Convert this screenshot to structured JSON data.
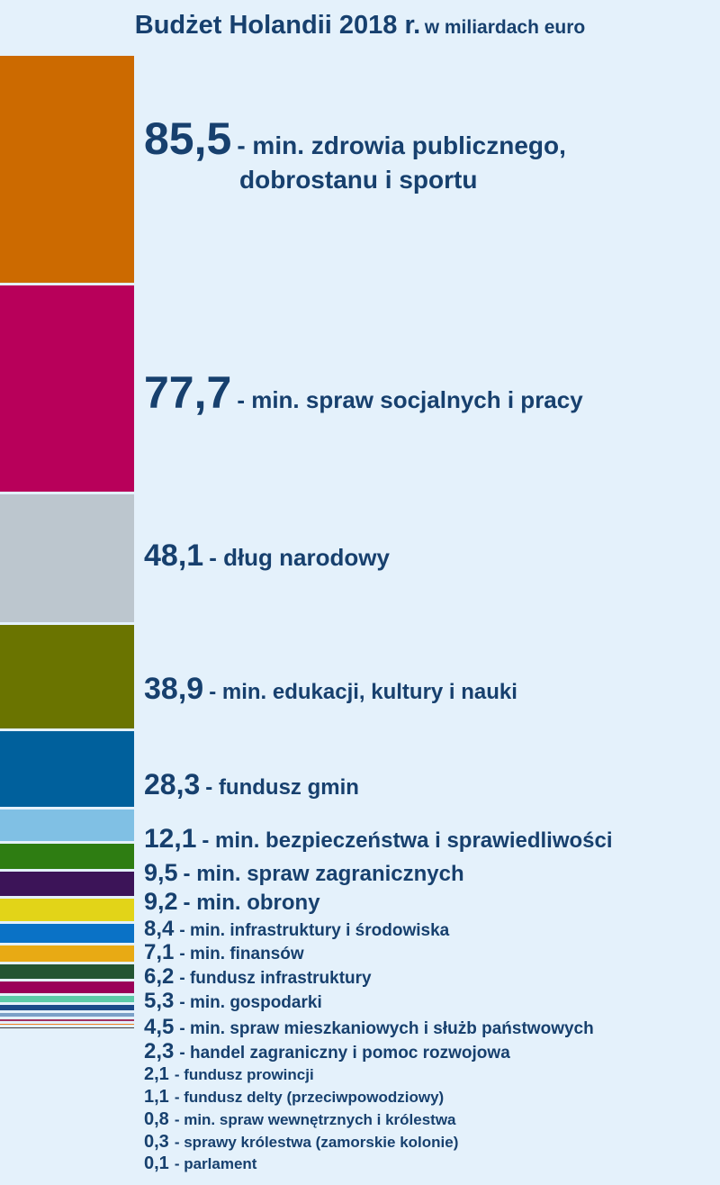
{
  "title": "Budżet Holandii 2018 r.",
  "subtitle": "w miliardach euro",
  "chart_data": {
    "type": "bar",
    "orientation": "stacked-vertical",
    "title": "Budżet Holandii 2018 r. w miliardach euro",
    "unit": "mld euro",
    "items": [
      {
        "value": 85.5,
        "value_label": "85,5",
        "label": "- min. zdrowia publicznego,",
        "label2": "dobrostanu i sportu",
        "color": "#cc6a00"
      },
      {
        "value": 77.7,
        "value_label": "77,7",
        "label": "- min. spraw socjalnych i pracy",
        "color": "#b8005a"
      },
      {
        "value": 48.1,
        "value_label": "48,1",
        "label": "- dług narodowy",
        "color": "#bcc6ce"
      },
      {
        "value": 38.9,
        "value_label": "38,9",
        "label": "- min. edukacji, kultury i nauki",
        "color": "#6a7400"
      },
      {
        "value": 28.3,
        "value_label": "28,3",
        "label": "- fundusz gmin",
        "color": "#00609c"
      },
      {
        "value": 12.1,
        "value_label": "12,1",
        "label": "- min. bezpieczeństwa i sprawiedliwości",
        "color": "#80c0e4"
      },
      {
        "value": 9.5,
        "value_label": "9,5",
        "label": "- min. spraw zagranicznych",
        "color": "#2e7d12"
      },
      {
        "value": 9.2,
        "value_label": "9,2",
        "label": "- min. obrony",
        "color": "#3c1458"
      },
      {
        "value": 8.4,
        "value_label": "8,4",
        "label": "- min. infrastruktury i środowiska",
        "color": "#e2d418"
      },
      {
        "value": 7.1,
        "value_label": "7,1",
        "label": "- min. finansów",
        "color": "#0a72c6"
      },
      {
        "value": 6.2,
        "value_label": "6,2",
        "label": "- fundusz infrastruktury",
        "color": "#e8aa14"
      },
      {
        "value": 5.3,
        "value_label": "5,3",
        "label": "- min. gospodarki",
        "color": "#235532"
      },
      {
        "value": 4.5,
        "value_label": "4,5",
        "label": "- min. spraw mieszkaniowych i służb państwowych",
        "color": "#9a0058"
      },
      {
        "value": 2.3,
        "value_label": "2,3",
        "label": "- handel zagraniczny i pomoc rozwojowa",
        "color": "#5ccaa8"
      },
      {
        "value": 2.1,
        "value_label": "2,1",
        "label": "- fundusz prowincji",
        "color": "#1a4a8a"
      },
      {
        "value": 1.1,
        "value_label": "1,1",
        "label": "- fundusz delty (przeciwpowodziowy)",
        "color": "#7aa0c8"
      },
      {
        "value": 0.8,
        "value_label": "0,8",
        "label": "- min. spraw wewnętrznych i królestwa",
        "color": "#a03060"
      },
      {
        "value": 0.3,
        "value_label": "0,3",
        "label": "- sprawy królestwa (zamorskie kolonie)",
        "color": "#f08020"
      },
      {
        "value": 0.1,
        "value_label": "0,1",
        "label": "- parlament",
        "color": "#404040"
      }
    ]
  }
}
